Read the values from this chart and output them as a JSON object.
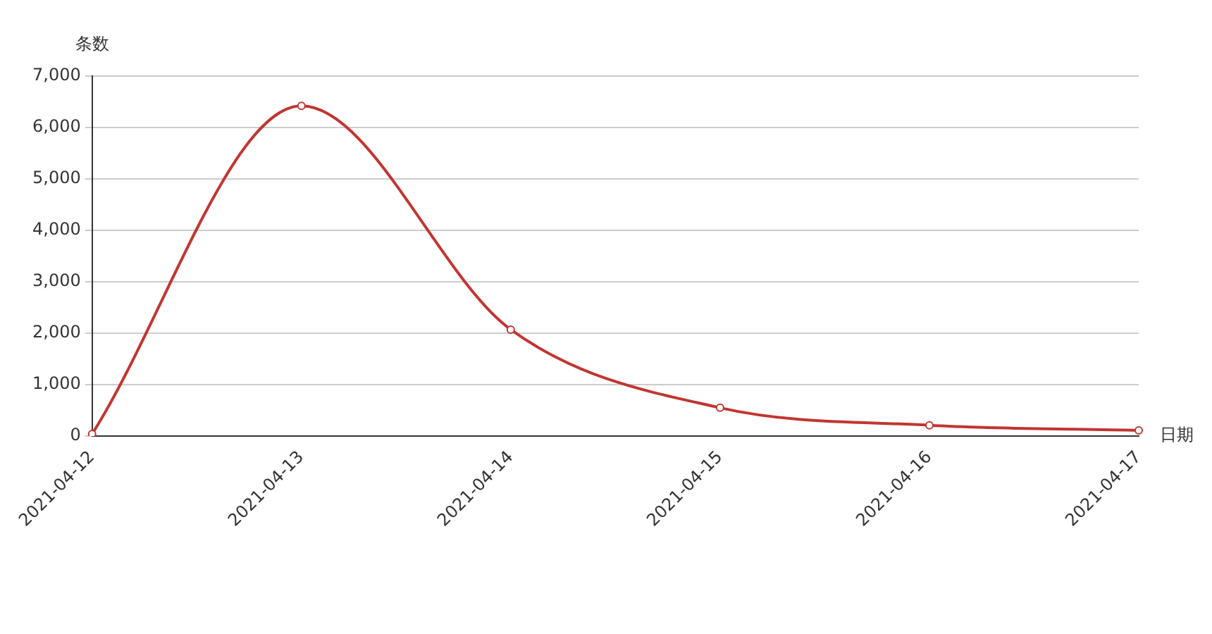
{
  "chart_data": {
    "type": "line",
    "xlabel": "日期",
    "ylabel": "条数",
    "categories": [
      "2021-04-12",
      "2021-04-13",
      "2021-04-14",
      "2021-04-15",
      "2021-04-16",
      "2021-04-17"
    ],
    "series": [
      {
        "color": "#c23531",
        "values": [
          40,
          6420,
          2070,
          550,
          210,
          110
        ]
      }
    ],
    "ylim": [
      0,
      7000
    ],
    "yticks": [
      0,
      {
        "value": 1000,
        "label": "1,000"
      },
      {
        "value": 2000,
        "label": "2,000"
      },
      {
        "value": 3000,
        "label": "3,000"
      },
      {
        "value": 4000,
        "label": "4,000"
      },
      {
        "value": 5000,
        "label": "5,000"
      },
      {
        "value": 6000,
        "label": "6,000"
      },
      {
        "value": 7000,
        "label": "7,000"
      }
    ],
    "grid": "y",
    "legend": false,
    "marker": "circle",
    "line_style": "solid"
  }
}
